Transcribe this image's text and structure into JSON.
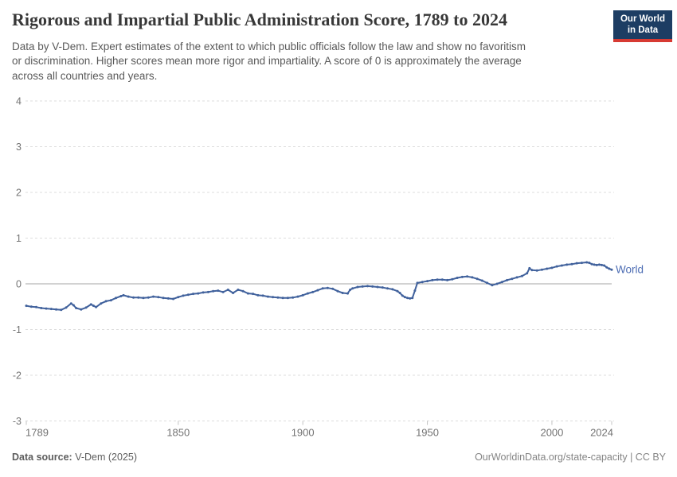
{
  "header": {
    "title": "Rigorous and Impartial Public Administration Score, 1789 to 2024",
    "subtitle_lines": [
      "Data by V-Dem. Expert estimates of the extent to which public officials follow the law and show no favoritism",
      "or discrimination. Higher scores mean more rigor and impartiality. A score of 0 is approximately the average",
      "across all countries and years."
    ],
    "logo": {
      "line1": "Our World",
      "line2": "in Data"
    }
  },
  "footer": {
    "source_label": "Data source:",
    "source_value": " V-Dem (2025)",
    "attribution": "OurWorldinData.org/state-capacity | CC BY"
  },
  "colors": {
    "line": "#40619c",
    "series_label": "#4c6cb3",
    "grid": "#dddddd",
    "zero_line": "#a5a5a5",
    "tick": "#c3c3c3",
    "axis_text": "#737373",
    "title_text": "#383838",
    "subtitle_text": "#595959",
    "footer_text": "#5d5d5d",
    "footer_muted": "#858585",
    "logo_bg": "#1d3d63",
    "logo_accent": "#d73a33"
  },
  "chart_data": {
    "type": "line",
    "title": "Rigorous and Impartial Public Administration Score, 1789 to 2024",
    "xlabel": "",
    "ylabel": "",
    "xlim": [
      1789,
      2024
    ],
    "ylim": [
      -3,
      4
    ],
    "yticks": [
      4,
      3,
      2,
      1,
      0,
      -1,
      -2,
      -3
    ],
    "xticks": [
      1789,
      1850,
      1900,
      1950,
      2000,
      2024
    ],
    "grid": "horizontal-dashed",
    "zero_line": true,
    "legend": "end-of-line-label",
    "series": [
      {
        "name": "World",
        "points": [
          [
            1789,
            -0.48
          ],
          [
            1791,
            -0.5
          ],
          [
            1793,
            -0.51
          ],
          [
            1795,
            -0.53
          ],
          [
            1797,
            -0.54
          ],
          [
            1799,
            -0.55
          ],
          [
            1801,
            -0.56
          ],
          [
            1803,
            -0.57
          ],
          [
            1805,
            -0.52
          ],
          [
            1807,
            -0.43
          ],
          [
            1808,
            -0.47
          ],
          [
            1809,
            -0.53
          ],
          [
            1811,
            -0.56
          ],
          [
            1813,
            -0.52
          ],
          [
            1815,
            -0.45
          ],
          [
            1816,
            -0.48
          ],
          [
            1817,
            -0.51
          ],
          [
            1819,
            -0.43
          ],
          [
            1821,
            -0.38
          ],
          [
            1823,
            -0.36
          ],
          [
            1825,
            -0.31
          ],
          [
            1827,
            -0.27
          ],
          [
            1828,
            -0.25
          ],
          [
            1830,
            -0.28
          ],
          [
            1832,
            -0.3
          ],
          [
            1834,
            -0.3
          ],
          [
            1836,
            -0.31
          ],
          [
            1838,
            -0.3
          ],
          [
            1840,
            -0.28
          ],
          [
            1842,
            -0.29
          ],
          [
            1844,
            -0.31
          ],
          [
            1846,
            -0.32
          ],
          [
            1848,
            -0.33
          ],
          [
            1850,
            -0.29
          ],
          [
            1852,
            -0.26
          ],
          [
            1854,
            -0.24
          ],
          [
            1856,
            -0.22
          ],
          [
            1858,
            -0.21
          ],
          [
            1860,
            -0.19
          ],
          [
            1862,
            -0.18
          ],
          [
            1864,
            -0.16
          ],
          [
            1866,
            -0.15
          ],
          [
            1868,
            -0.18
          ],
          [
            1870,
            -0.13
          ],
          [
            1872,
            -0.2
          ],
          [
            1874,
            -0.13
          ],
          [
            1876,
            -0.16
          ],
          [
            1878,
            -0.21
          ],
          [
            1880,
            -0.22
          ],
          [
            1882,
            -0.25
          ],
          [
            1884,
            -0.26
          ],
          [
            1886,
            -0.28
          ],
          [
            1888,
            -0.29
          ],
          [
            1890,
            -0.3
          ],
          [
            1892,
            -0.31
          ],
          [
            1894,
            -0.31
          ],
          [
            1896,
            -0.3
          ],
          [
            1898,
            -0.28
          ],
          [
            1900,
            -0.25
          ],
          [
            1902,
            -0.21
          ],
          [
            1904,
            -0.18
          ],
          [
            1906,
            -0.14
          ],
          [
            1908,
            -0.1
          ],
          [
            1910,
            -0.09
          ],
          [
            1912,
            -0.11
          ],
          [
            1914,
            -0.16
          ],
          [
            1916,
            -0.2
          ],
          [
            1918,
            -0.21
          ],
          [
            1919,
            -0.13
          ],
          [
            1920,
            -0.1
          ],
          [
            1922,
            -0.07
          ],
          [
            1924,
            -0.06
          ],
          [
            1926,
            -0.05
          ],
          [
            1928,
            -0.06
          ],
          [
            1930,
            -0.07
          ],
          [
            1932,
            -0.08
          ],
          [
            1934,
            -0.1
          ],
          [
            1936,
            -0.12
          ],
          [
            1938,
            -0.16
          ],
          [
            1939,
            -0.2
          ],
          [
            1940,
            -0.26
          ],
          [
            1941,
            -0.29
          ],
          [
            1942,
            -0.31
          ],
          [
            1943,
            -0.32
          ],
          [
            1944,
            -0.31
          ],
          [
            1945,
            -0.15
          ],
          [
            1946,
            0.02
          ],
          [
            1948,
            0.04
          ],
          [
            1950,
            0.06
          ],
          [
            1952,
            0.08
          ],
          [
            1954,
            0.09
          ],
          [
            1956,
            0.09
          ],
          [
            1958,
            0.08
          ],
          [
            1960,
            0.1
          ],
          [
            1962,
            0.13
          ],
          [
            1964,
            0.15
          ],
          [
            1966,
            0.16
          ],
          [
            1968,
            0.14
          ],
          [
            1970,
            0.11
          ],
          [
            1972,
            0.07
          ],
          [
            1974,
            0.02
          ],
          [
            1976,
            -0.03
          ],
          [
            1978,
            0.0
          ],
          [
            1980,
            0.04
          ],
          [
            1982,
            0.08
          ],
          [
            1984,
            0.11
          ],
          [
            1986,
            0.14
          ],
          [
            1988,
            0.17
          ],
          [
            1990,
            0.23
          ],
          [
            1991,
            0.34
          ],
          [
            1992,
            0.3
          ],
          [
            1994,
            0.29
          ],
          [
            1996,
            0.31
          ],
          [
            1998,
            0.33
          ],
          [
            2000,
            0.35
          ],
          [
            2002,
            0.38
          ],
          [
            2004,
            0.4
          ],
          [
            2006,
            0.42
          ],
          [
            2008,
            0.43
          ],
          [
            2010,
            0.45
          ],
          [
            2012,
            0.46
          ],
          [
            2014,
            0.47
          ],
          [
            2015,
            0.46
          ],
          [
            2016,
            0.43
          ],
          [
            2017,
            0.42
          ],
          [
            2018,
            0.41
          ],
          [
            2019,
            0.42
          ],
          [
            2020,
            0.41
          ],
          [
            2021,
            0.4
          ],
          [
            2022,
            0.36
          ],
          [
            2023,
            0.33
          ],
          [
            2024,
            0.31
          ]
        ]
      }
    ]
  }
}
